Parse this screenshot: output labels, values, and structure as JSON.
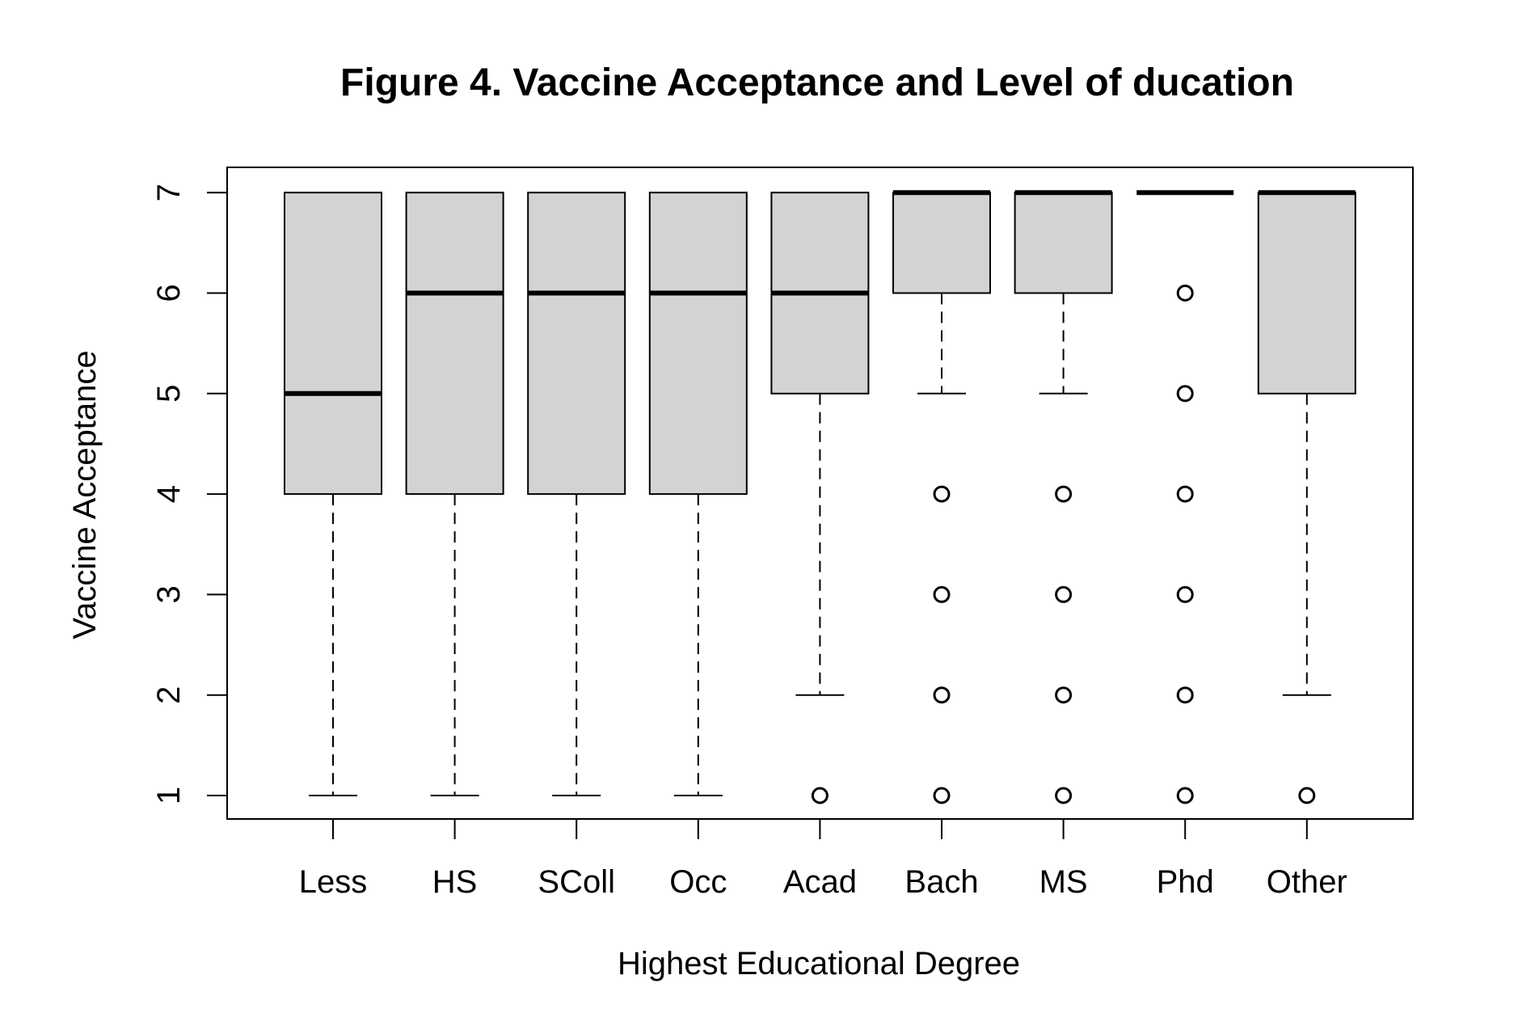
{
  "chart_data": {
    "type": "boxplot",
    "title": "Figure 4. Vaccine Acceptance and Level of ducation",
    "xlabel": "Highest Educational Degree",
    "ylabel": "Vaccine Acceptance",
    "ylim": [
      1,
      7
    ],
    "yticks": [
      1,
      2,
      3,
      4,
      5,
      6,
      7
    ],
    "grid": false,
    "categories": [
      "Less",
      "HS",
      "SColl",
      "Occ",
      "Acad",
      "Bach",
      "MS",
      "Phd",
      "Other"
    ],
    "boxes": [
      {
        "category": "Less",
        "whisker_low": 1,
        "q1": 4,
        "median": 5,
        "q3": 7,
        "whisker_high": 7,
        "outliers": []
      },
      {
        "category": "HS",
        "whisker_low": 1,
        "q1": 4,
        "median": 6,
        "q3": 7,
        "whisker_high": 7,
        "outliers": []
      },
      {
        "category": "SColl",
        "whisker_low": 1,
        "q1": 4,
        "median": 6,
        "q3": 7,
        "whisker_high": 7,
        "outliers": []
      },
      {
        "category": "Occ",
        "whisker_low": 1,
        "q1": 4,
        "median": 6,
        "q3": 7,
        "whisker_high": 7,
        "outliers": []
      },
      {
        "category": "Acad",
        "whisker_low": 2,
        "q1": 5,
        "median": 6,
        "q3": 7,
        "whisker_high": 7,
        "outliers": [
          1
        ]
      },
      {
        "category": "Bach",
        "whisker_low": 5,
        "q1": 6,
        "median": 7,
        "q3": 7,
        "whisker_high": 7,
        "outliers": [
          1,
          2,
          3,
          4
        ]
      },
      {
        "category": "MS",
        "whisker_low": 5,
        "q1": 6,
        "median": 7,
        "q3": 7,
        "whisker_high": 7,
        "outliers": [
          1,
          2,
          3,
          4
        ]
      },
      {
        "category": "Phd",
        "whisker_low": 7,
        "q1": 7,
        "median": 7,
        "q3": 7,
        "whisker_high": 7,
        "outliers": [
          1,
          2,
          3,
          4,
          5,
          6
        ]
      },
      {
        "category": "Other",
        "whisker_low": 2,
        "q1": 5,
        "median": 7,
        "q3": 7,
        "whisker_high": 7,
        "outliers": [
          1
        ]
      }
    ],
    "colors": {
      "box_fill": "#d3d3d3",
      "line": "#000000",
      "background": "#ffffff"
    }
  }
}
